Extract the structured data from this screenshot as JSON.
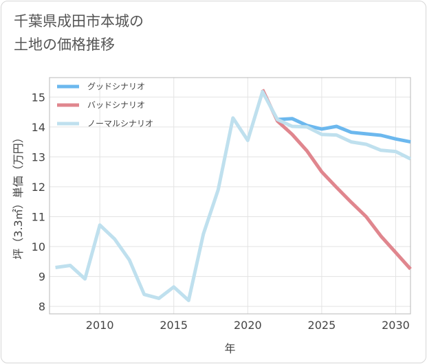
{
  "chart_data": {
    "type": "line",
    "title_lines": [
      "千葉県成田市本城の",
      "土地の価格推移"
    ],
    "xlabel": "年",
    "ylabel": "坪（3.3㎡）単価（万円）",
    "xlim": [
      2006.6,
      2031
    ],
    "ylim": [
      7.75,
      15.65
    ],
    "x_ticks": [
      2010,
      2015,
      2020,
      2025,
      2030
    ],
    "y_ticks": [
      8,
      9,
      10,
      11,
      12,
      13,
      14,
      15
    ],
    "x_tick_labels": [
      "2010",
      "2015",
      "2020",
      "2025",
      "2030"
    ],
    "y_tick_labels": [
      "8",
      "9",
      "10",
      "11",
      "12",
      "13",
      "14",
      "15"
    ],
    "grid": true,
    "legend_position": "top-left",
    "series": [
      {
        "name": "グッドシナリオ",
        "color": "#6cb8ee",
        "x": [
          2022,
          2023,
          2024,
          2025,
          2026,
          2027,
          2028,
          2029,
          2030,
          2031
        ],
        "values": [
          14.25,
          14.28,
          14.05,
          13.93,
          14.02,
          13.82,
          13.77,
          13.72,
          13.6,
          13.5
        ]
      },
      {
        "name": "バッドシナリオ",
        "color": "#e0868e",
        "x": [
          2021,
          2022,
          2023,
          2024,
          2025,
          2026,
          2027,
          2028,
          2029,
          2030,
          2031
        ],
        "values": [
          15.25,
          14.2,
          13.75,
          13.2,
          12.5,
          11.98,
          11.48,
          11.0,
          10.35,
          9.8,
          9.25
        ]
      },
      {
        "name": "ノーマルシナリオ",
        "color": "#bfe0ee",
        "x": [
          2007,
          2008,
          2009,
          2010,
          2011,
          2012,
          2013,
          2014,
          2015,
          2016,
          2017,
          2018,
          2019,
          2020,
          2021,
          2022,
          2023,
          2024,
          2025,
          2026,
          2027,
          2028,
          2029,
          2030,
          2031
        ],
        "values": [
          9.3,
          9.37,
          8.92,
          10.72,
          10.25,
          9.55,
          8.4,
          8.27,
          8.65,
          8.2,
          10.42,
          11.9,
          14.3,
          13.55,
          15.18,
          14.25,
          14.02,
          14.0,
          13.75,
          13.73,
          13.5,
          13.42,
          13.22,
          13.18,
          12.93
        ]
      }
    ]
  }
}
